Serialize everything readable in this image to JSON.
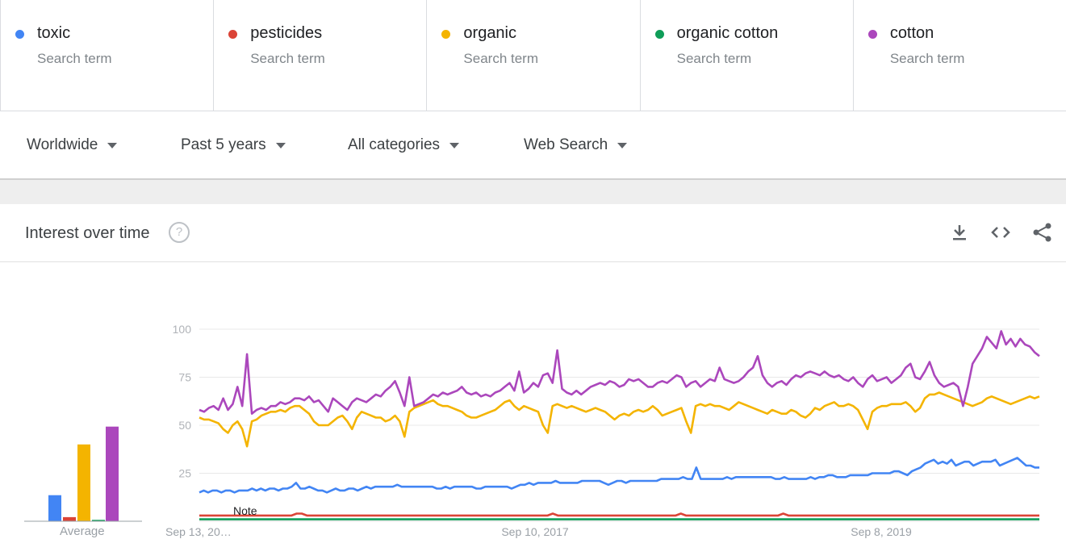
{
  "terms": [
    {
      "name": "toxic",
      "sub": "Search term",
      "color": "#4285f4"
    },
    {
      "name": "pesticides",
      "sub": "Search term",
      "color": "#db4437"
    },
    {
      "name": "organic",
      "sub": "Search term",
      "color": "#f4b400"
    },
    {
      "name": "organic cotton",
      "sub": "Search term",
      "color": "#0f9d58"
    },
    {
      "name": "cotton",
      "sub": "Search term",
      "color": "#ab47bc"
    }
  ],
  "filters": {
    "region": "Worldwide",
    "time": "Past 5 years",
    "category": "All categories",
    "search_type": "Web Search"
  },
  "card": {
    "title": "Interest over time",
    "help": "?",
    "icons": [
      "download-icon",
      "embed-icon",
      "share-icon"
    ]
  },
  "average_label": "Average",
  "chart_data": [
    {
      "type": "bar",
      "title": "",
      "categories": [
        "toxic",
        "pesticides",
        "organic",
        "organic cotton",
        "cotton"
      ],
      "values": [
        19,
        3,
        56,
        1,
        69
      ],
      "colors": [
        "#4285f4",
        "#db4437",
        "#f4b400",
        "#0f9d58",
        "#ab47bc"
      ],
      "xlabel": "Average",
      "ylim": [
        0,
        100
      ]
    },
    {
      "type": "line",
      "title": "",
      "xlabel": "",
      "ylabel": "",
      "ylim": [
        0,
        100
      ],
      "yticks": [
        25,
        50,
        75,
        100
      ],
      "grid": true,
      "x_tick_labels": [
        "Sep 13, 20…",
        "Sep 10, 2017",
        "Sep 8, 2019"
      ],
      "annotation": "Note",
      "series": [
        {
          "name": "cotton",
          "color": "#ab47bc",
          "values": [
            58,
            57,
            59,
            60,
            58,
            64,
            58,
            61,
            70,
            60,
            87,
            56,
            58,
            59,
            58,
            60,
            60,
            62,
            61,
            62,
            64,
            64,
            63,
            65,
            62,
            63,
            60,
            57,
            64,
            62,
            60,
            58,
            62,
            64,
            63,
            62,
            64,
            66,
            65,
            68,
            70,
            73,
            67,
            60,
            75,
            60,
            61,
            62,
            64,
            66,
            65,
            67,
            66,
            67,
            68,
            70,
            67,
            66,
            67,
            65,
            66,
            65,
            67,
            68,
            70,
            72,
            68,
            78,
            67,
            69,
            72,
            70,
            76,
            77,
            72,
            89,
            69,
            67,
            66,
            68,
            66,
            68,
            70,
            71,
            72,
            71,
            73,
            72,
            70,
            71,
            74,
            73,
            74,
            72,
            70,
            70,
            72,
            73,
            72,
            74,
            76,
            75,
            70,
            72,
            73,
            70,
            72,
            74,
            73,
            80,
            74,
            73,
            72,
            73,
            75,
            78,
            80,
            86,
            76,
            72,
            70,
            72,
            73,
            71,
            74,
            76,
            75,
            77,
            78,
            77,
            76,
            78,
            76,
            75,
            76,
            74,
            73,
            75,
            72,
            70,
            74,
            76,
            73,
            74,
            75,
            72,
            74,
            76,
            80,
            82,
            75,
            74,
            78,
            83,
            76,
            72,
            70,
            71,
            72,
            70,
            60,
            70,
            82,
            86,
            90,
            96,
            93,
            90,
            99,
            92,
            95,
            91,
            95,
            92,
            91,
            88,
            86
          ],
          "trim": 4
        },
        {
          "name": "organic",
          "color": "#f4b400",
          "values": [
            54,
            53,
            53,
            52,
            51,
            48,
            46,
            50,
            52,
            48,
            39,
            52,
            53,
            55,
            56,
            57,
            57,
            58,
            57,
            59,
            60,
            60,
            58,
            56,
            52,
            50,
            50,
            50,
            52,
            54,
            55,
            52,
            48,
            54,
            57,
            56,
            55,
            54,
            54,
            52,
            53,
            55,
            52,
            44,
            57,
            59,
            60,
            61,
            62,
            63,
            61,
            60,
            60,
            59,
            58,
            57,
            55,
            54,
            54,
            55,
            56,
            57,
            58,
            60,
            62,
            63,
            60,
            58,
            60,
            59,
            58,
            57,
            50,
            46,
            60,
            61,
            60,
            59,
            60,
            59,
            58,
            57,
            58,
            59,
            58,
            57,
            55,
            53,
            55,
            56,
            55,
            57,
            58,
            57,
            58,
            60,
            58,
            55,
            56,
            57,
            58,
            59,
            52,
            46,
            60,
            61,
            60,
            61,
            60,
            60,
            59,
            58,
            60,
            62,
            61,
            60,
            59,
            58,
            57,
            56,
            58,
            57,
            56,
            56,
            58,
            57,
            55,
            54,
            56,
            59,
            58,
            60,
            61,
            62,
            60,
            60,
            61,
            60,
            58,
            53,
            48,
            57,
            59,
            60,
            60,
            61,
            61,
            61,
            62,
            60,
            57,
            59,
            64,
            66,
            66,
            67,
            66,
            65,
            64,
            63,
            62,
            61,
            60,
            61,
            62,
            64,
            65,
            64,
            63,
            62,
            61,
            62,
            63,
            64,
            65,
            64,
            65
          ],
          "trim": 0
        },
        {
          "name": "toxic",
          "color": "#4285f4",
          "values": [
            15,
            16,
            15,
            16,
            16,
            15,
            16,
            16,
            15,
            16,
            16,
            16,
            17,
            16,
            17,
            16,
            17,
            17,
            16,
            17,
            17,
            18,
            20,
            17,
            17,
            18,
            17,
            16,
            16,
            15,
            16,
            17,
            16,
            16,
            17,
            17,
            16,
            17,
            18,
            17,
            18,
            18,
            18,
            18,
            18,
            19,
            18,
            18,
            18,
            18,
            18,
            18,
            18,
            18,
            17,
            17,
            18,
            17,
            18,
            18,
            18,
            18,
            18,
            17,
            17,
            18,
            18,
            18,
            18,
            18,
            18,
            17,
            18,
            19,
            19,
            20,
            19,
            20,
            20,
            20,
            20,
            21,
            20,
            20,
            20,
            20,
            20,
            21,
            21,
            21,
            21,
            21,
            20,
            19,
            20,
            21,
            21,
            20,
            21,
            21,
            21,
            21,
            21,
            21,
            21,
            22,
            22,
            22,
            22,
            22,
            23,
            22,
            22,
            28,
            22,
            22,
            22,
            22,
            22,
            22,
            23,
            22,
            23,
            23,
            23,
            23,
            23,
            23,
            23,
            23,
            23,
            22,
            22,
            23,
            22,
            22,
            22,
            22,
            22,
            23,
            22,
            23,
            23,
            24,
            24,
            23,
            23,
            23,
            24,
            24,
            24,
            24,
            24,
            25,
            25,
            25,
            25,
            25,
            26,
            26,
            25,
            24,
            26,
            27,
            28,
            30,
            31,
            32,
            30,
            31,
            30,
            32,
            29,
            30,
            31,
            31,
            29,
            30,
            31,
            31,
            31,
            32,
            29,
            30,
            31,
            32,
            33,
            31,
            29,
            29,
            28,
            28
          ]
        },
        {
          "name": "pesticides",
          "color": "#db4437",
          "values": [
            3,
            3,
            3,
            3,
            3,
            3,
            3,
            3,
            3,
            3,
            3,
            3,
            3,
            3,
            3,
            3,
            3,
            3,
            3,
            4,
            4,
            3,
            3,
            3,
            3,
            3,
            3,
            3,
            3,
            3,
            3,
            3,
            3,
            3,
            3,
            3,
            3,
            3,
            3,
            3,
            3,
            3,
            3,
            3,
            3,
            3,
            3,
            3,
            3,
            3,
            3,
            3,
            3,
            3,
            3,
            3,
            3,
            3,
            3,
            3,
            3,
            3,
            3,
            3,
            3,
            3,
            3,
            3,
            3,
            4,
            3,
            3,
            3,
            3,
            3,
            3,
            3,
            3,
            3,
            3,
            3,
            3,
            3,
            3,
            3,
            3,
            3,
            3,
            3,
            3,
            3,
            3,
            3,
            3,
            4,
            3,
            3,
            3,
            3,
            3,
            3,
            3,
            3,
            3,
            3,
            3,
            3,
            3,
            3,
            3,
            3,
            3,
            3,
            3,
            4,
            3,
            3,
            3,
            3,
            3,
            3,
            3,
            3,
            3,
            3,
            3,
            3,
            3,
            3,
            3,
            3,
            3,
            3,
            3,
            3,
            3,
            3,
            3,
            3,
            3,
            3,
            3,
            3,
            3,
            3,
            3,
            3,
            3,
            3,
            3,
            3,
            3,
            3,
            3,
            3,
            3,
            3,
            3,
            3,
            3,
            3,
            3,
            3,
            3,
            3
          ]
        },
        {
          "name": "organic cotton",
          "color": "#0f9d58",
          "values": [
            1,
            1,
            1,
            1,
            1,
            1,
            1,
            1,
            1,
            1,
            1,
            1,
            1,
            1,
            1,
            1,
            1,
            1,
            1,
            1,
            1,
            1,
            1,
            1,
            1,
            1,
            1,
            1,
            1,
            1,
            1,
            1,
            1,
            1,
            1,
            1,
            1,
            1,
            1,
            1,
            1,
            1,
            1,
            1,
            1,
            1,
            1,
            1,
            1,
            1,
            1,
            1,
            1,
            1,
            1,
            1,
            1,
            1,
            1,
            1,
            1,
            1,
            1,
            1,
            1,
            1,
            1,
            1,
            1,
            1,
            1,
            1,
            1,
            1,
            1,
            1,
            1,
            1,
            1,
            1,
            1,
            1,
            1,
            1,
            1,
            1,
            1,
            1,
            1,
            1,
            1,
            1,
            1,
            1,
            1,
            1,
            1,
            1,
            1,
            1,
            1,
            1,
            1,
            1,
            1,
            1,
            1,
            1,
            1,
            1,
            1,
            1,
            1,
            1,
            1,
            1,
            1,
            1,
            1,
            1,
            1,
            1,
            1,
            1,
            1,
            1,
            1,
            1,
            1,
            1,
            1,
            1,
            1,
            1,
            1,
            1,
            1,
            1,
            1,
            1,
            1,
            1,
            1,
            1,
            1,
            1,
            1,
            1,
            1,
            1,
            1,
            1,
            1,
            1,
            1,
            1,
            1,
            1,
            1,
            1,
            1,
            1,
            1,
            1,
            1
          ]
        }
      ]
    }
  ]
}
